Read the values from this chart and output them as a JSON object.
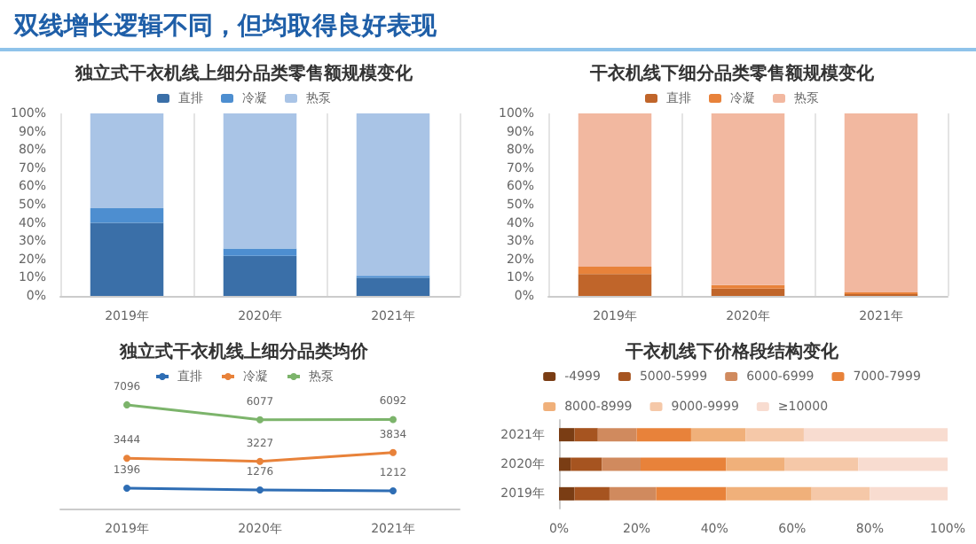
{
  "chart_data": [
    {
      "type": "bar",
      "title": "独立式干衣机线上细分品类零售额规模变化",
      "annotations": [
        "双线增长逻辑不同，但均取得良好表现"
      ],
      "categories": [
        "2019年",
        "2020年",
        "2021年"
      ],
      "stacked": true,
      "legend": "top",
      "grid": "x",
      "ylim": [
        0,
        100
      ],
      "yticks": [
        {
          "value": 0,
          "label": "0%"
        },
        {
          "value": 10,
          "label": "10%"
        },
        {
          "value": 20,
          "label": "20%"
        },
        {
          "value": 30,
          "label": "30%"
        },
        {
          "value": 40,
          "label": "40%"
        },
        {
          "value": 50,
          "label": "50%"
        },
        {
          "value": 60,
          "label": "60%"
        },
        {
          "value": 70,
          "label": "70%"
        },
        {
          "value": 80,
          "label": "80%"
        },
        {
          "value": 90,
          "label": "90%"
        },
        {
          "value": 100,
          "label": "100%"
        }
      ],
      "series": [
        {
          "name": "直排",
          "color": "#3a6fa8",
          "values": [
            40,
            22,
            10
          ]
        },
        {
          "name": "冷凝",
          "color": "#4d8ed0",
          "values": [
            8,
            4,
            1
          ]
        },
        {
          "name": "热泵",
          "color": "#a9c4e6",
          "values": [
            52,
            74,
            89
          ]
        }
      ]
    },
    {
      "type": "bar",
      "title": "干衣机线下细分品类零售额规模变化",
      "categories": [
        "2019年",
        "2020年",
        "2021年"
      ],
      "stacked": true,
      "legend": "top",
      "grid": "x",
      "ylim": [
        0,
        100
      ],
      "yticks": [
        {
          "value": 0,
          "label": "0%"
        },
        {
          "value": 10,
          "label": "10%"
        },
        {
          "value": 20,
          "label": "20%"
        },
        {
          "value": 30,
          "label": "30%"
        },
        {
          "value": 40,
          "label": "40%"
        },
        {
          "value": 50,
          "label": "50%"
        },
        {
          "value": 60,
          "label": "60%"
        },
        {
          "value": 70,
          "label": "70%"
        },
        {
          "value": 80,
          "label": "80%"
        },
        {
          "value": 90,
          "label": "90%"
        },
        {
          "value": 100,
          "label": "100%"
        }
      ],
      "series": [
        {
          "name": "直排",
          "color": "#c0652a",
          "values": [
            12,
            4,
            1
          ]
        },
        {
          "name": "冷凝",
          "color": "#e8823a",
          "values": [
            4,
            2,
            1
          ]
        },
        {
          "name": "热泵",
          "color": "#f2b8a0",
          "values": [
            84,
            94,
            98
          ]
        }
      ]
    },
    {
      "type": "line",
      "title": "独立式干衣机线上细分品类均价",
      "categories": [
        "2019年",
        "2020年",
        "2021年"
      ],
      "legend": "top",
      "marker": "circle",
      "data_labels": true,
      "series": [
        {
          "name": "直排",
          "color": "#2e6db4",
          "values": [
            1396,
            1276,
            1212
          ]
        },
        {
          "name": "冷凝",
          "color": "#e8823a",
          "values": [
            3444,
            3227,
            3834
          ]
        },
        {
          "name": "热泵",
          "color": "#7cb46b",
          "values": [
            7096,
            6077,
            6092
          ]
        }
      ]
    },
    {
      "type": "bar",
      "title": "干衣机线下价格段结构变化",
      "orientation": "horizontal",
      "stacked": true,
      "legend": "top",
      "categories": [
        "2021年",
        "2020年",
        "2019年"
      ],
      "xlim": [
        0,
        100
      ],
      "xticks": [
        {
          "value": 0,
          "label": "0%"
        },
        {
          "value": 20,
          "label": "20%"
        },
        {
          "value": 40,
          "label": "40%"
        },
        {
          "value": 60,
          "label": "60%"
        },
        {
          "value": 80,
          "label": "80%"
        },
        {
          "value": 100,
          "label": "100%"
        }
      ],
      "series": [
        {
          "name": "-4999",
          "color": "#7a3d14",
          "values": [
            4,
            3,
            4
          ]
        },
        {
          "name": "5000-5999",
          "color": "#a65420",
          "values": [
            6,
            8,
            9
          ]
        },
        {
          "name": "6000-6999",
          "color": "#d08a5e",
          "values": [
            10,
            10,
            12
          ]
        },
        {
          "name": "7000-7999",
          "color": "#e8823a",
          "values": [
            14,
            22,
            18
          ]
        },
        {
          "name": "8000-8999",
          "color": "#f0b07a",
          "values": [
            14,
            15,
            22
          ]
        },
        {
          "name": "9000-9999",
          "color": "#f5c8a8",
          "values": [
            15,
            19,
            15
          ]
        },
        {
          "name": "≥10000",
          "color": "#f8dcd0",
          "values": [
            37,
            23,
            20
          ]
        }
      ]
    }
  ]
}
